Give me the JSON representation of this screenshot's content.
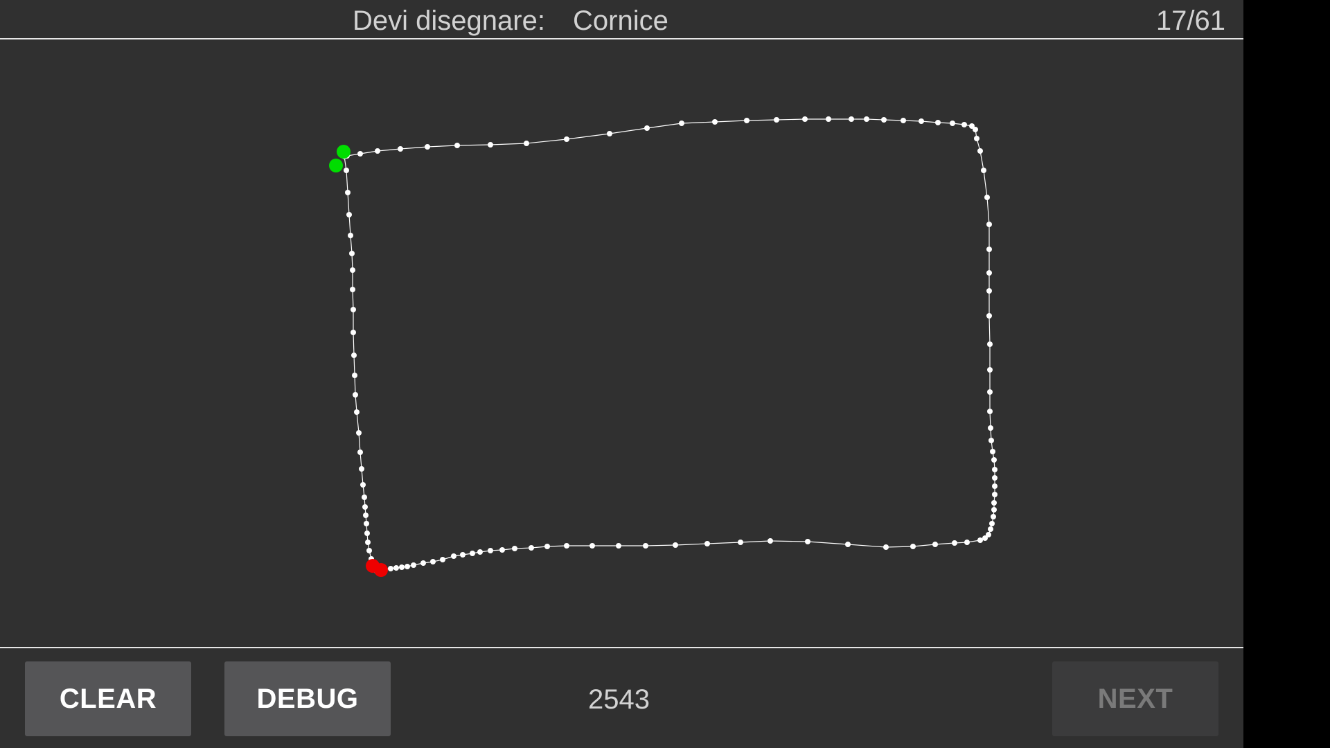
{
  "header": {
    "prompt_label": "Devi disegnare:",
    "prompt_word": "Cornice",
    "progress": "17/61"
  },
  "footer": {
    "clear_label": "CLEAR",
    "debug_label": "DEBUG",
    "score": "2543",
    "next_label": "NEXT",
    "next_enabled": false
  },
  "colors": {
    "background": "#303030",
    "stroke": "#ffffff",
    "start_marker": "#00dd00",
    "end_marker": "#ee0000",
    "button": "#555557",
    "button_disabled": "#3b3b3c"
  }
}
